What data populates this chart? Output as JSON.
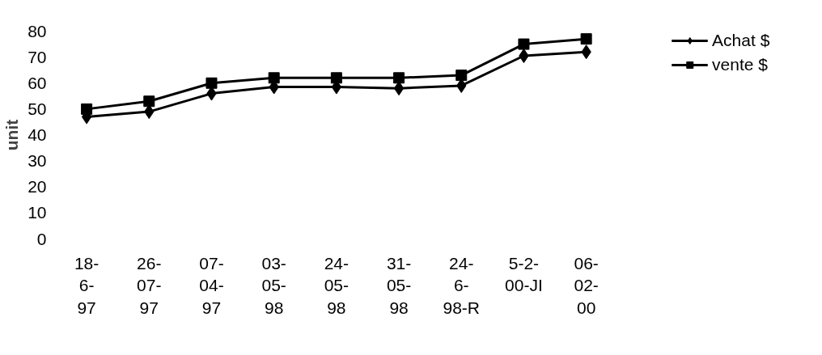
{
  "chart_data": {
    "type": "line",
    "ylabel": "unit",
    "categories": [
      "18-6-97",
      "26-07-97",
      "07-04-97",
      "03-05-98",
      "24-05-98",
      "31-05-98",
      "24-6-98-R",
      "5-2-00-JI",
      "06-02-00"
    ],
    "series": [
      {
        "name": "Achat $",
        "color": "#000000",
        "marker": "diamond",
        "values": [
          47,
          49,
          56,
          58.5,
          58.5,
          58,
          59,
          70.5,
          72
        ]
      },
      {
        "name": "vente $",
        "color": "#000000",
        "marker": "square",
        "values": [
          50,
          53,
          60,
          62,
          62,
          62,
          63,
          75,
          77
        ]
      }
    ],
    "ylim": [
      0,
      80
    ],
    "yticks": [
      0,
      10,
      20,
      30,
      40,
      50,
      60,
      70,
      80
    ],
    "grid": false,
    "legend": "top right",
    "line_style": "solid"
  }
}
